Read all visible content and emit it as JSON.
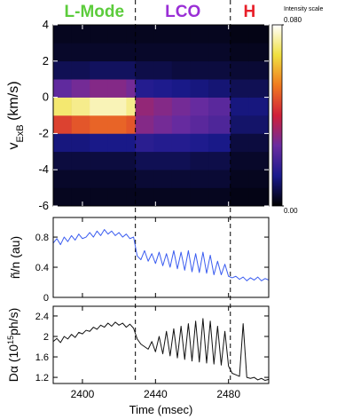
{
  "chart_data": [
    {
      "type": "heatmap",
      "ylabel_parts": [
        "v",
        "ExB",
        " (km/s)"
      ],
      "regions": [
        {
          "text": "L-Mode",
          "color": "#5ccc3c"
        },
        {
          "text": "LCO",
          "color": "#9a2fd6"
        },
        {
          "text": "H",
          "color": "#e8202a"
        }
      ],
      "transitions": [
        2429,
        2481
      ],
      "xlim": [
        2384,
        2502
      ],
      "xticks": [
        2400,
        2440,
        2480
      ],
      "ylim": [
        -6,
        4
      ],
      "yticks": [
        4,
        2,
        0,
        -2,
        -4,
        -6
      ],
      "x_bins": [
        2384,
        2394,
        2404,
        2414,
        2424,
        2429,
        2439,
        2449,
        2459,
        2469,
        2481,
        2491,
        2502
      ],
      "y_bins": [
        -6,
        -5,
        -4,
        -3,
        -2,
        -1,
        0,
        1,
        2,
        3,
        4
      ],
      "values": [
        [
          0.003,
          0.003,
          0.003,
          0.003,
          0.003,
          0.003,
          0.003,
          0.003,
          0.003,
          0.003,
          0.002,
          0.002
        ],
        [
          0.004,
          0.004,
          0.004,
          0.004,
          0.004,
          0.005,
          0.005,
          0.005,
          0.005,
          0.005,
          0.003,
          0.003
        ],
        [
          0.006,
          0.006,
          0.006,
          0.006,
          0.006,
          0.008,
          0.008,
          0.008,
          0.007,
          0.007,
          0.004,
          0.004
        ],
        [
          0.012,
          0.012,
          0.013,
          0.013,
          0.013,
          0.016,
          0.015,
          0.015,
          0.014,
          0.013,
          0.006,
          0.006
        ],
        [
          0.045,
          0.048,
          0.05,
          0.05,
          0.048,
          0.03,
          0.028,
          0.026,
          0.024,
          0.022,
          0.01,
          0.01
        ],
        [
          0.07,
          0.072,
          0.075,
          0.075,
          0.072,
          0.032,
          0.03,
          0.028,
          0.026,
          0.024,
          0.012,
          0.012
        ],
        [
          0.025,
          0.028,
          0.03,
          0.03,
          0.028,
          0.015,
          0.014,
          0.013,
          0.012,
          0.011,
          0.008,
          0.008
        ],
        [
          0.008,
          0.008,
          0.009,
          0.009,
          0.009,
          0.007,
          0.007,
          0.006,
          0.006,
          0.006,
          0.005,
          0.005
        ],
        [
          0.004,
          0.004,
          0.004,
          0.004,
          0.004,
          0.004,
          0.004,
          0.004,
          0.004,
          0.004,
          0.003,
          0.003
        ],
        [
          0.003,
          0.003,
          0.003,
          0.003,
          0.003,
          0.003,
          0.003,
          0.003,
          0.003,
          0.003,
          0.002,
          0.002
        ]
      ],
      "colormap": [
        "#000000",
        "#1a1a8c",
        "#6a2ca0",
        "#d0203a",
        "#f07a20",
        "#f0e040",
        "#ffffff"
      ],
      "colorbar_label": "Intensity scale",
      "clim": [
        0,
        0.08
      ],
      "cticks": [
        {
          "value": 0.08,
          "label": "0.080"
        },
        {
          "value": 0,
          "label": "0.00"
        }
      ]
    },
    {
      "type": "line",
      "ylabel_parts": [
        "ñ/n (au)"
      ],
      "color": "#3a5cf0",
      "xlim": [
        2384,
        2502
      ],
      "xticks": [
        2400,
        2440,
        2480
      ],
      "ylim": [
        0,
        1.06
      ],
      "yticks": [
        0,
        0.4,
        0.8
      ],
      "x": [
        2384,
        2386,
        2388,
        2390,
        2392,
        2394,
        2396,
        2398,
        2400,
        2402,
        2404,
        2406,
        2408,
        2410,
        2412,
        2414,
        2416,
        2418,
        2420,
        2422,
        2424,
        2426,
        2428,
        2430,
        2432,
        2434,
        2436,
        2438,
        2440,
        2442,
        2444,
        2446,
        2448,
        2450,
        2452,
        2454,
        2456,
        2458,
        2460,
        2462,
        2464,
        2466,
        2468,
        2470,
        2472,
        2474,
        2476,
        2478,
        2480,
        2482,
        2484,
        2486,
        2488,
        2490,
        2492,
        2494,
        2496,
        2498,
        2500,
        2502
      ],
      "values": [
        0.72,
        0.78,
        0.7,
        0.8,
        0.74,
        0.82,
        0.76,
        0.84,
        0.78,
        0.8,
        0.86,
        0.8,
        0.88,
        0.82,
        0.9,
        0.84,
        0.88,
        0.82,
        0.86,
        0.8,
        0.84,
        0.78,
        0.8,
        0.55,
        0.5,
        0.62,
        0.48,
        0.58,
        0.45,
        0.6,
        0.42,
        0.58,
        0.4,
        0.62,
        0.38,
        0.6,
        0.36,
        0.62,
        0.34,
        0.58,
        0.33,
        0.6,
        0.32,
        0.56,
        0.3,
        0.48,
        0.3,
        0.44,
        0.28,
        0.26,
        0.28,
        0.24,
        0.27,
        0.22,
        0.26,
        0.23,
        0.27,
        0.22,
        0.25,
        0.23
      ]
    },
    {
      "type": "line",
      "ylabel_parts": [
        "Dα (10",
        "15",
        "ph/s)"
      ],
      "color": "#111111",
      "xlabel": "Time (msec)",
      "xlim": [
        2384,
        2502
      ],
      "xticks": [
        2400,
        2440,
        2480
      ],
      "ylim": [
        1.08,
        2.59
      ],
      "yticks": [
        1.2,
        1.6,
        2.0,
        2.4
      ],
      "x": [
        2384,
        2386,
        2388,
        2390,
        2392,
        2394,
        2396,
        2398,
        2400,
        2402,
        2404,
        2406,
        2408,
        2410,
        2412,
        2414,
        2416,
        2418,
        2420,
        2422,
        2424,
        2426,
        2428,
        2430,
        2432,
        2434,
        2436,
        2438,
        2440,
        2442,
        2444,
        2446,
        2448,
        2450,
        2452,
        2454,
        2456,
        2458,
        2460,
        2462,
        2464,
        2466,
        2468,
        2470,
        2472,
        2474,
        2476,
        2478,
        2480,
        2482,
        2484,
        2486,
        2488,
        2490,
        2492,
        2494,
        2496,
        2498,
        2500,
        2502
      ],
      "values": [
        1.9,
        1.96,
        1.88,
        2.0,
        1.95,
        2.04,
        1.98,
        2.08,
        2.05,
        2.12,
        2.1,
        2.18,
        2.14,
        2.22,
        2.18,
        2.26,
        2.2,
        2.28,
        2.22,
        2.26,
        2.18,
        2.24,
        2.16,
        1.95,
        1.85,
        1.8,
        1.75,
        1.9,
        1.7,
        2.0,
        1.66,
        2.1,
        1.62,
        2.15,
        1.58,
        2.2,
        1.55,
        2.25,
        1.52,
        2.3,
        1.5,
        2.35,
        1.48,
        2.3,
        1.46,
        2.2,
        1.44,
        2.1,
        1.42,
        1.28,
        1.25,
        1.22,
        2.25,
        1.2,
        1.18,
        1.2,
        1.15,
        1.18,
        1.14,
        1.16
      ]
    }
  ]
}
